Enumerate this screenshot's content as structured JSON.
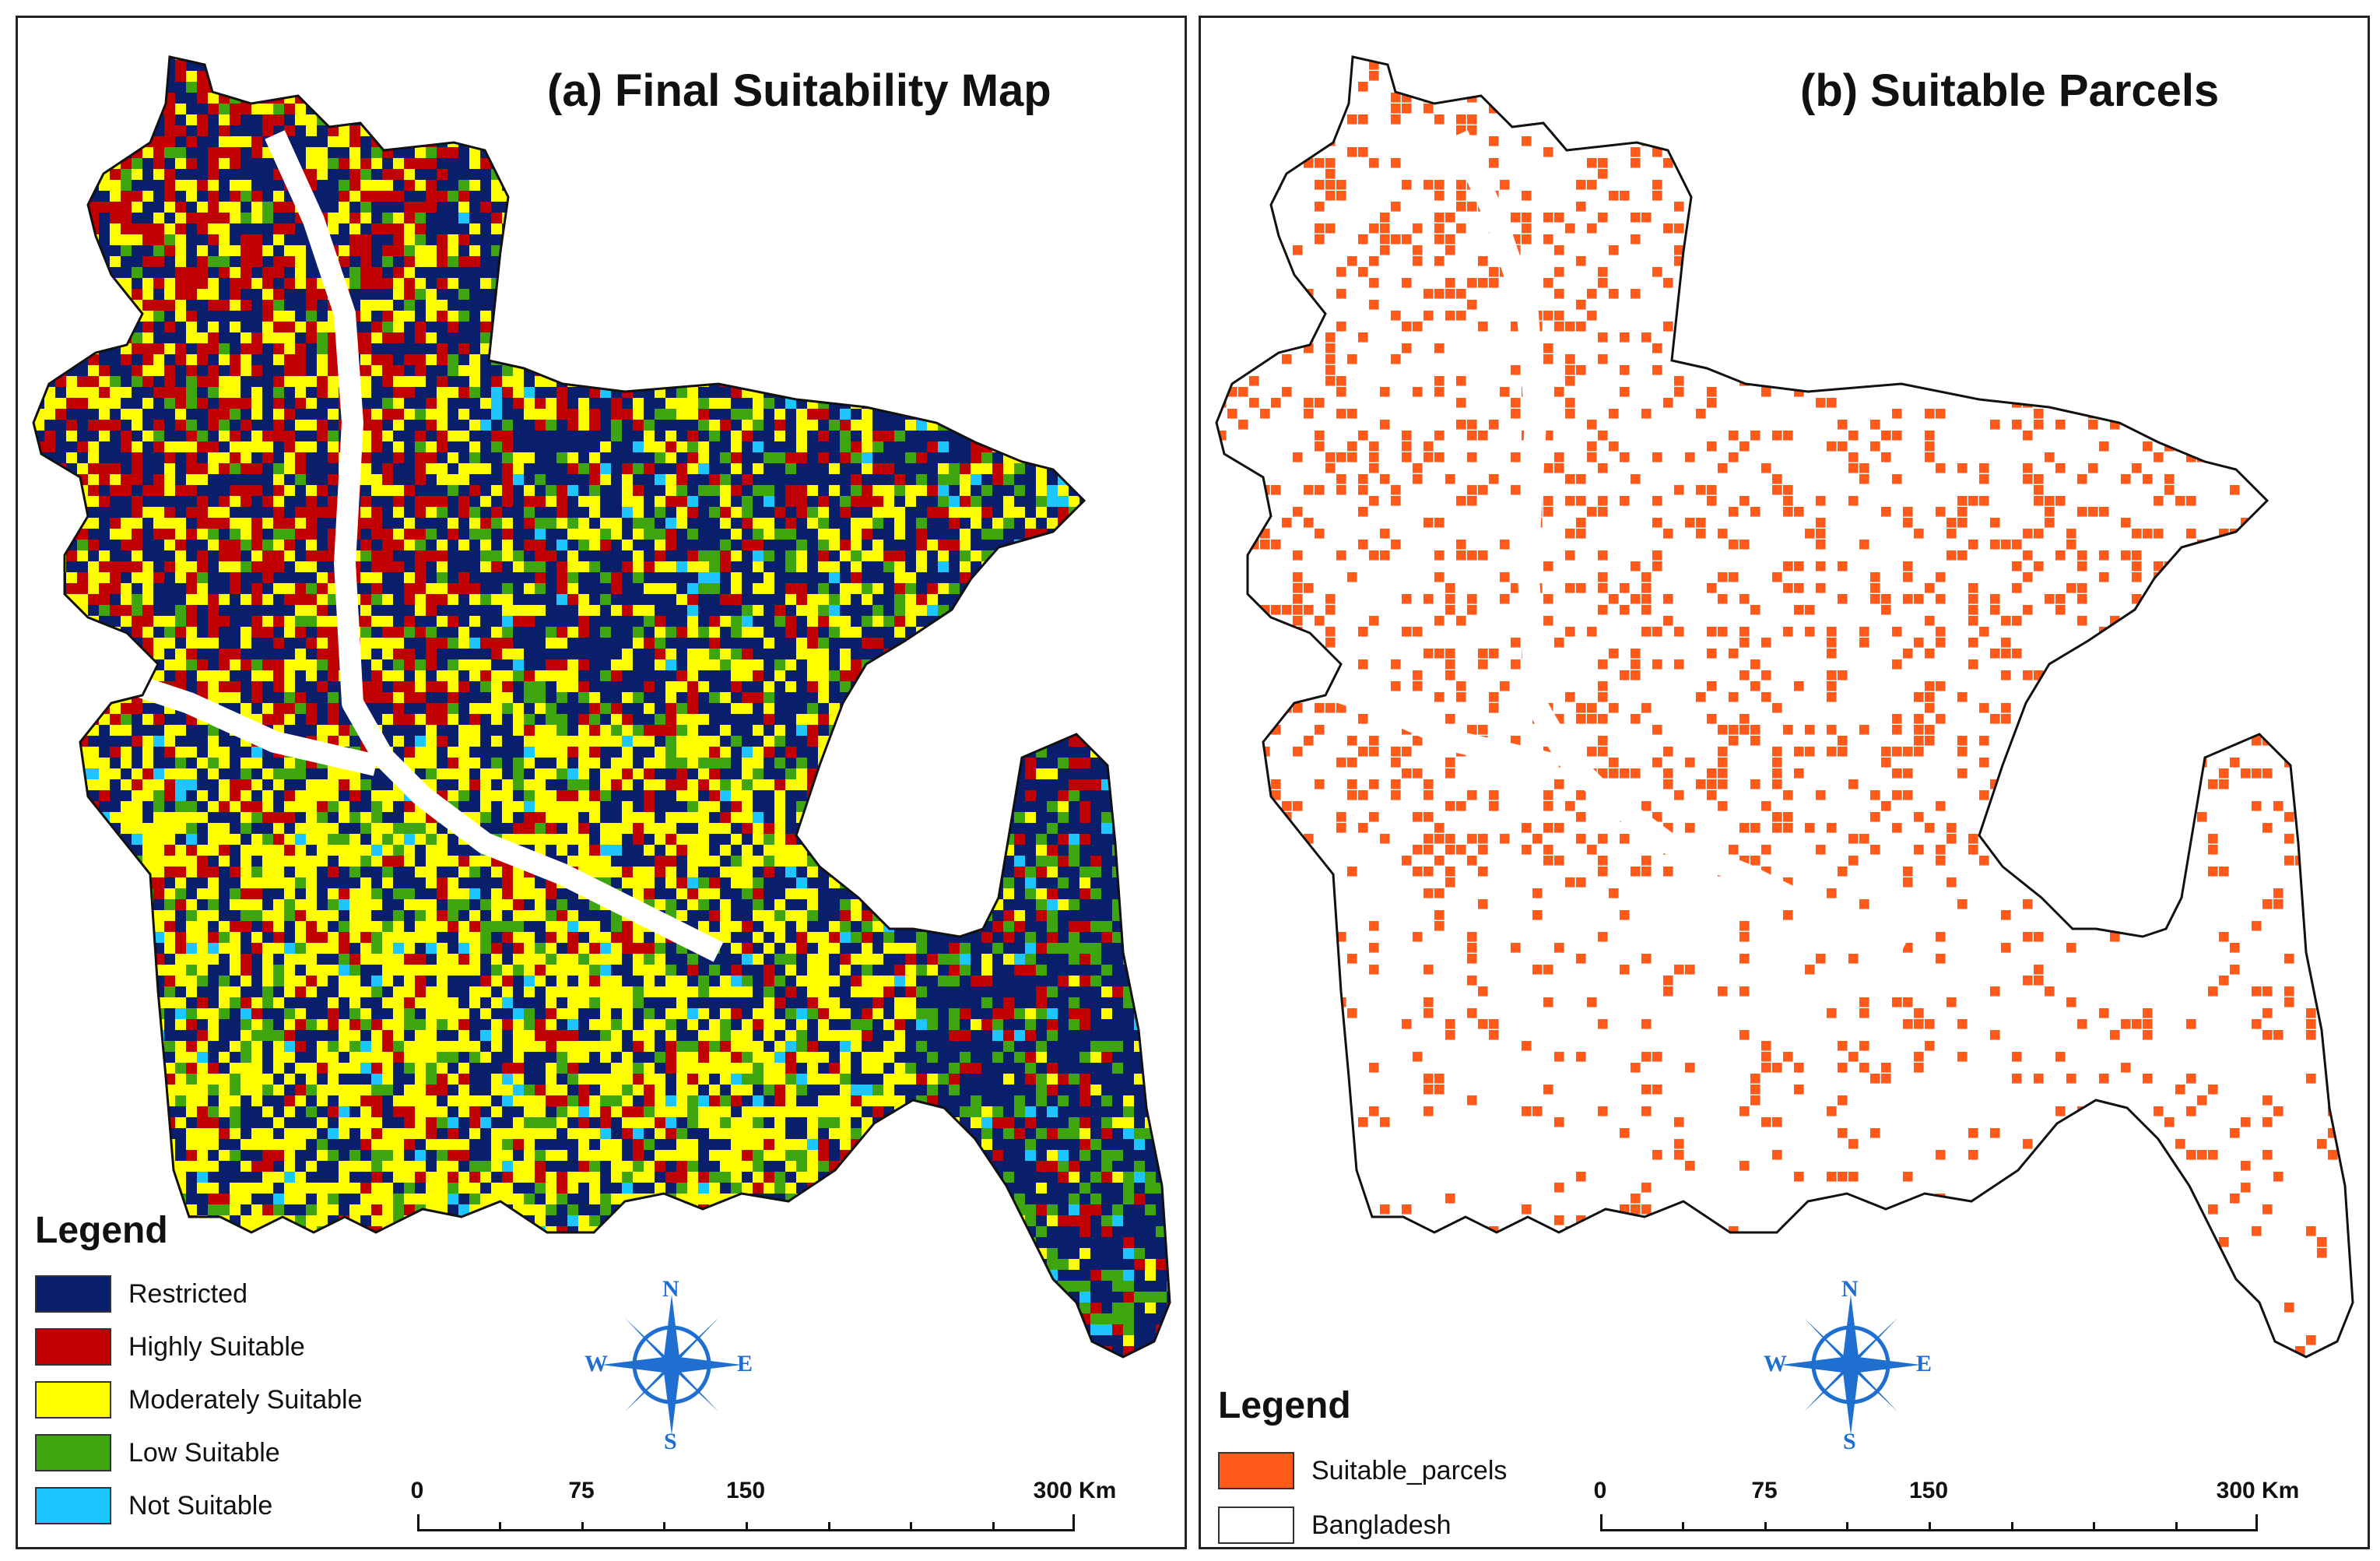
{
  "panel_a": {
    "title": "(a) Final Suitability Map",
    "legend_title": "Legend",
    "legend_items": [
      {
        "label": "Restricted",
        "color": "#0a1f6b"
      },
      {
        "label": "Highly Suitable",
        "color": "#c00000"
      },
      {
        "label": "Moderately Suitable",
        "color": "#ffff00"
      },
      {
        "label": "Low Suitable",
        "color": "#3fa50f"
      },
      {
        "label": "Not Suitable",
        "color": "#1ec6ff"
      }
    ],
    "scale": {
      "labels": [
        "0",
        "75",
        "150",
        "300 Km"
      ]
    },
    "compass": {
      "n": "N",
      "s": "S",
      "e": "E",
      "w": "W"
    }
  },
  "panel_b": {
    "title": "(b) Suitable Parcels",
    "legend_title": "Legend",
    "legend_items": [
      {
        "label": "Suitable_parcels",
        "color": "#ff5a1a"
      },
      {
        "label": "Bangladesh",
        "color": "#ffffff"
      }
    ],
    "scale": {
      "labels": [
        "0",
        "75",
        "150",
        "300 Km"
      ]
    },
    "compass": {
      "n": "N",
      "s": "S",
      "e": "E",
      "w": "W"
    }
  }
}
